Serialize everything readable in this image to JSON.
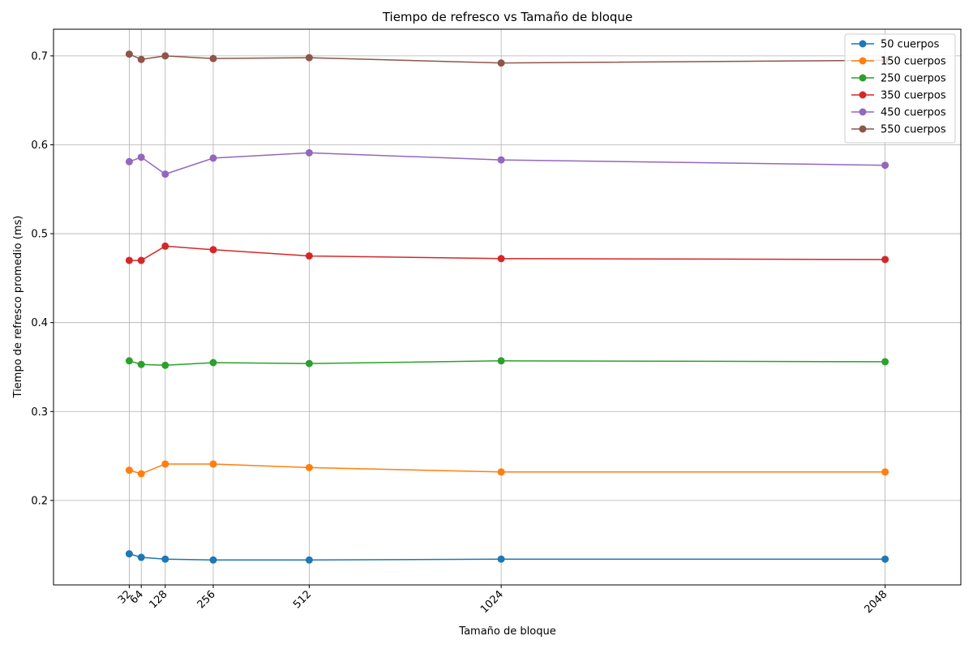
{
  "chart_data": {
    "type": "line",
    "title": "Tiempo de refresco vs Tamaño de bloque",
    "xlabel": "Tamaño de bloque",
    "ylabel": "Tiempo de refresco promedio (ms)",
    "x": [
      32,
      64,
      128,
      256,
      512,
      1024,
      2048
    ],
    "x_tick_labels": [
      "32",
      "64",
      "128",
      "256",
      "512",
      "1024",
      "2048"
    ],
    "xlim": [
      -170,
      2250
    ],
    "ylim": [
      0.105,
      0.73
    ],
    "y_ticks": [
      0.2,
      0.3,
      0.4,
      0.5,
      0.6,
      0.7
    ],
    "y_tick_labels": [
      "0.2",
      "0.3",
      "0.4",
      "0.5",
      "0.6",
      "0.7"
    ],
    "grid": true,
    "legend_position": "upper right",
    "marker": "circle",
    "series": [
      {
        "name": "50 cuerpos",
        "color": "#1f77b4",
        "values": [
          0.14,
          0.136,
          0.134,
          0.133,
          0.133,
          0.134,
          0.134
        ]
      },
      {
        "name": "150 cuerpos",
        "color": "#ff7f0e",
        "values": [
          0.234,
          0.23,
          0.241,
          0.241,
          0.237,
          0.232,
          0.232
        ]
      },
      {
        "name": "250 cuerpos",
        "color": "#2ca02c",
        "values": [
          0.357,
          0.353,
          0.352,
          0.355,
          0.354,
          0.357,
          0.356
        ]
      },
      {
        "name": "350 cuerpos",
        "color": "#d62728",
        "values": [
          0.47,
          0.47,
          0.486,
          0.482,
          0.475,
          0.472,
          0.471
        ]
      },
      {
        "name": "450 cuerpos",
        "color": "#9467bd",
        "values": [
          0.581,
          0.586,
          0.567,
          0.585,
          0.591,
          0.583,
          0.577
        ]
      },
      {
        "name": "550 cuerpos",
        "color": "#8c564b",
        "values": [
          0.702,
          0.696,
          0.7,
          0.697,
          0.698,
          0.692,
          0.695
        ]
      }
    ]
  }
}
